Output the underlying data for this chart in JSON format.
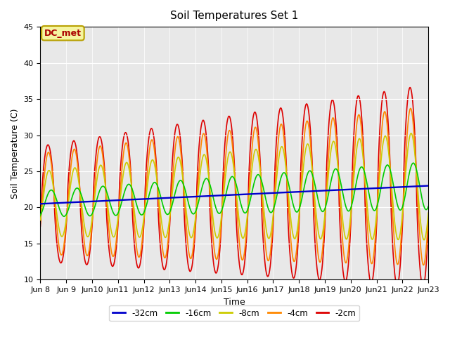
{
  "title": "Soil Temperatures Set 1",
  "xlabel": "Time",
  "ylabel": "Soil Temperature (C)",
  "ylim": [
    10,
    45
  ],
  "xlim": [
    0,
    360
  ],
  "plot_bg_color": "#e8e8e8",
  "annotation_text": "DC_met",
  "annotation_bg": "#f5f5a0",
  "annotation_border": "#b8a000",
  "legend_labels": [
    "-32cm",
    "-16cm",
    "-8cm",
    "-4cm",
    "-2cm"
  ],
  "legend_colors": [
    "#0000cc",
    "#00cc00",
    "#cccc00",
    "#ff8800",
    "#dd0000"
  ],
  "tick_labels": [
    "Jun 8",
    "Jun 9",
    "Jun 10",
    "Jun 11",
    "Jun 12",
    "Jun 13",
    "Jun 14",
    "Jun 15",
    "Jun 16",
    "Jun 17",
    "Jun 18",
    "Jun 19",
    "Jun 20",
    "Jun 21",
    "Jun 22",
    "Jun 23"
  ],
  "tick_positions": [
    0,
    24,
    48,
    72,
    96,
    120,
    144,
    168,
    192,
    216,
    240,
    264,
    288,
    312,
    336,
    360
  ],
  "yticks": [
    10,
    15,
    20,
    25,
    30,
    35,
    40,
    45
  ],
  "linewidth": 1.2
}
